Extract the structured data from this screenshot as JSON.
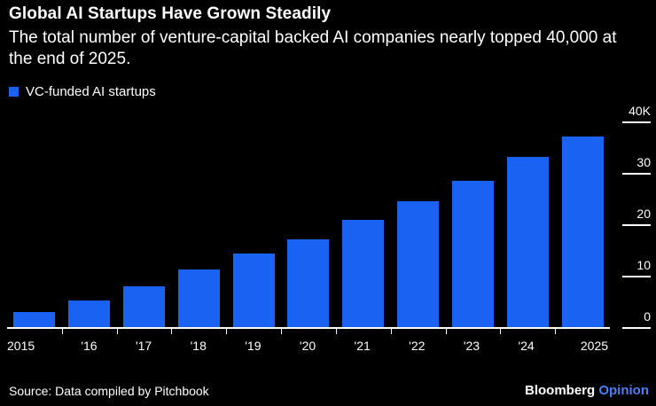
{
  "header": {
    "title": "Global AI Startups Have Grown Steadily",
    "subtitle": "The total number of venture-capital backed AI companies nearly topped 40,000 at the end of 2025.",
    "legend_label": "VC-funded AI startups"
  },
  "chart_data": {
    "type": "bar",
    "title": "Global AI Startups Have Grown Steadily",
    "series_name": "VC-funded AI startups",
    "categories": [
      "2015",
      "'16",
      "'17",
      "'18",
      "'19",
      "'20",
      "'21",
      "'22",
      "'23",
      "'24",
      "2025"
    ],
    "values": [
      3100,
      5400,
      8100,
      11300,
      14400,
      17200,
      21000,
      24600,
      28700,
      33200,
      37200
    ],
    "xlabel": "",
    "ylabel": "",
    "ylim": [
      0,
      40000
    ],
    "ytick_labels": [
      "40K",
      "30",
      "20",
      "10",
      "0"
    ],
    "ytick_values": [
      40000,
      30000,
      20000,
      10000,
      0
    ],
    "grid": false,
    "legend_position": "top-left",
    "bar_color": "#1A63F2"
  },
  "footer": {
    "source": "Source: Data compiled by Pitchbook",
    "brand": "Bloomberg",
    "brand_suffix": "Opinion"
  },
  "colors": {
    "background": "#000000",
    "text": "#FFFFFF",
    "bar": "#1A63F2",
    "opinion": "#4C7EF3"
  }
}
